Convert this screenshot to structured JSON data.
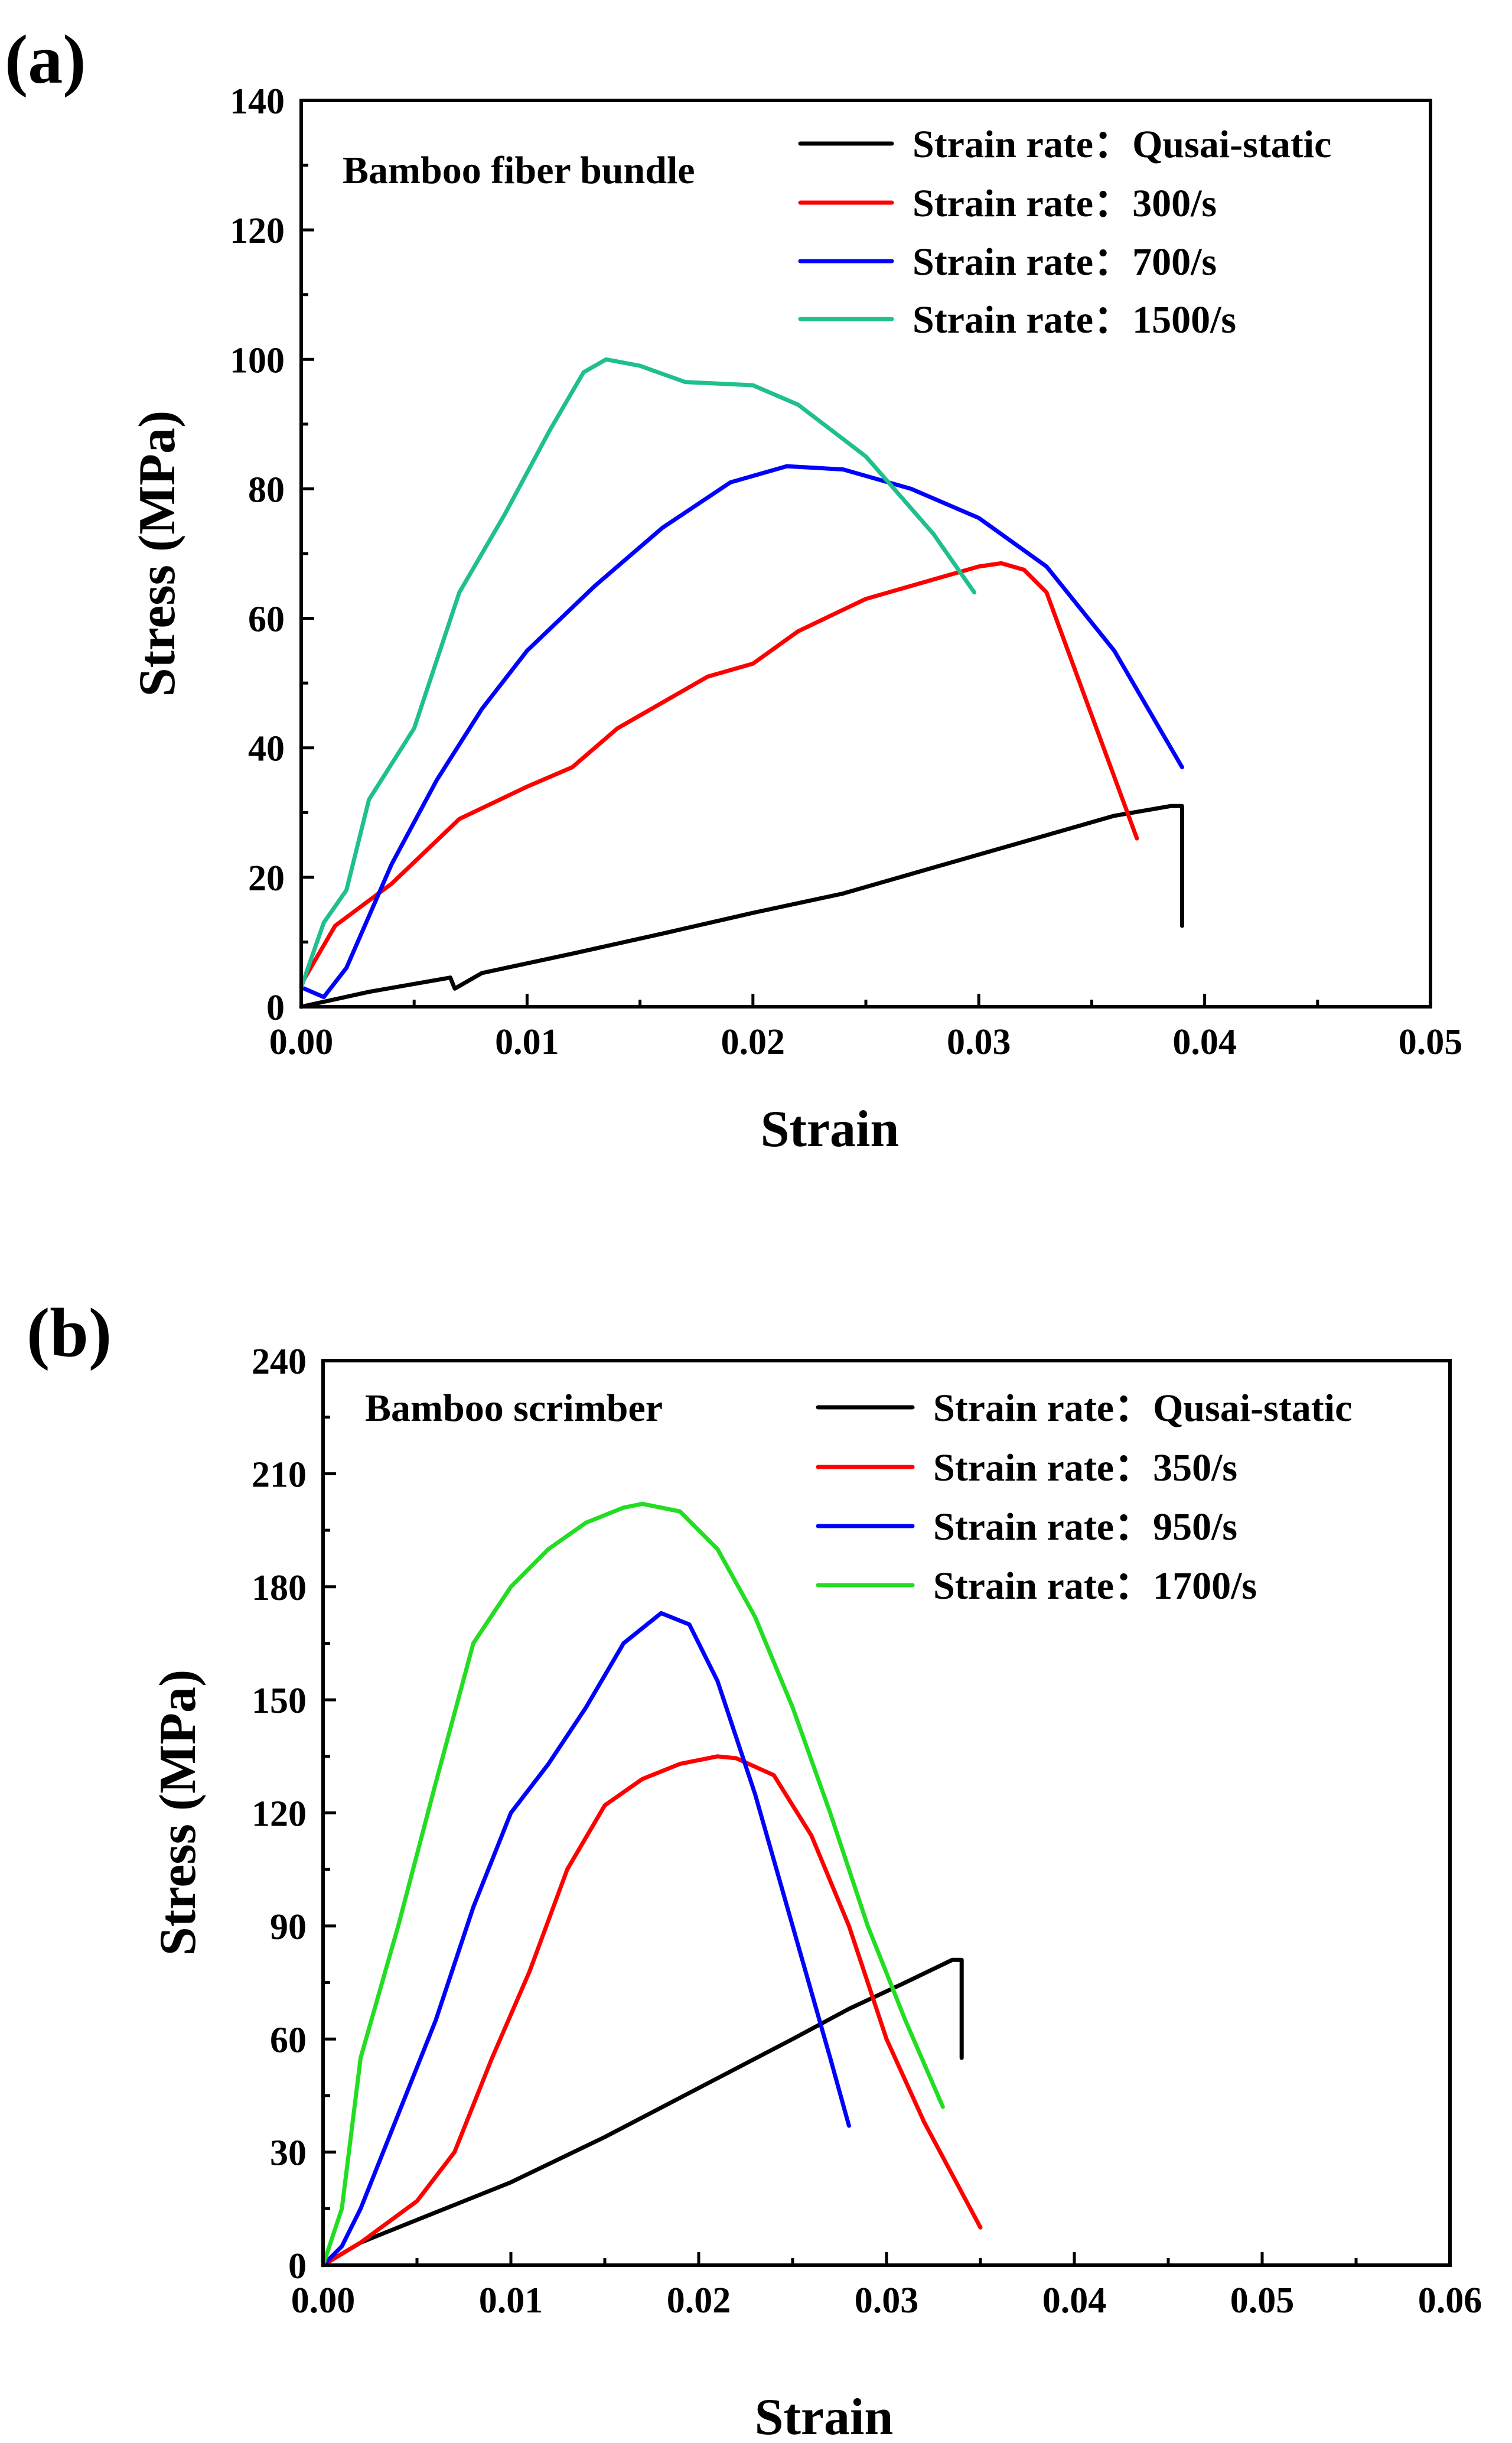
{
  "chart_data": [
    {
      "type": "line",
      "panel_label": "(a)",
      "title": "Bamboo fiber bundle",
      "xlabel": "Strain",
      "ylabel": "Stress (MPa)",
      "xlim": [
        0,
        0.05
      ],
      "ylim": [
        0,
        140
      ],
      "x_ticks": [
        "0.00",
        "0.01",
        "0.02",
        "0.03",
        "0.04",
        "0.05"
      ],
      "y_ticks": [
        "0",
        "20",
        "40",
        "60",
        "80",
        "100",
        "120",
        "140"
      ],
      "legend_position": "top-right",
      "series": [
        {
          "name": "Strain rate：Qusai-static",
          "color": "#000000",
          "points": [
            [
              0,
              0
            ],
            [
              0.003,
              2.3
            ],
            [
              0.0066,
              4.5
            ],
            [
              0.0068,
              2.8
            ],
            [
              0.008,
              5.2
            ],
            [
              0.012,
              8.2
            ],
            [
              0.016,
              11.3
            ],
            [
              0.02,
              14.5
            ],
            [
              0.024,
              17.5
            ],
            [
              0.028,
              21.5
            ],
            [
              0.032,
              25.5
            ],
            [
              0.036,
              29.5
            ],
            [
              0.0385,
              31
            ],
            [
              0.039,
              31
            ],
            [
              0.039,
              12.5
            ]
          ]
        },
        {
          "name": "Strain rate：300/s",
          "color": "#ff0000",
          "points": [
            [
              0,
              3.5
            ],
            [
              0.0015,
              12.5
            ],
            [
              0.004,
              19
            ],
            [
              0.007,
              29
            ],
            [
              0.01,
              34
            ],
            [
              0.012,
              37
            ],
            [
              0.014,
              43
            ],
            [
              0.018,
              51
            ],
            [
              0.02,
              53
            ],
            [
              0.022,
              58
            ],
            [
              0.025,
              63
            ],
            [
              0.028,
              66
            ],
            [
              0.03,
              68
            ],
            [
              0.031,
              68.5
            ],
            [
              0.032,
              67.5
            ],
            [
              0.033,
              64
            ],
            [
              0.035,
              45
            ],
            [
              0.037,
              26
            ]
          ]
        },
        {
          "name": "Strain rate：700/s",
          "color": "#0000ff",
          "points": [
            [
              0,
              3
            ],
            [
              0.001,
              1.5
            ],
            [
              0.002,
              6
            ],
            [
              0.004,
              22
            ],
            [
              0.006,
              35
            ],
            [
              0.008,
              46
            ],
            [
              0.01,
              55
            ],
            [
              0.013,
              65
            ],
            [
              0.016,
              74
            ],
            [
              0.019,
              81
            ],
            [
              0.0215,
              83.5
            ],
            [
              0.024,
              83
            ],
            [
              0.027,
              80
            ],
            [
              0.03,
              75.5
            ],
            [
              0.033,
              68
            ],
            [
              0.036,
              55
            ],
            [
              0.039,
              37
            ]
          ]
        },
        {
          "name": "Strain rate：1500/s",
          "color": "#1fbf8f",
          "points": [
            [
              0,
              3
            ],
            [
              0.001,
              13
            ],
            [
              0.002,
              18
            ],
            [
              0.003,
              32
            ],
            [
              0.005,
              43
            ],
            [
              0.007,
              64
            ],
            [
              0.009,
              76
            ],
            [
              0.011,
              89
            ],
            [
              0.0125,
              98
            ],
            [
              0.0135,
              100
            ],
            [
              0.015,
              99
            ],
            [
              0.017,
              96.5
            ],
            [
              0.02,
              96
            ],
            [
              0.022,
              93
            ],
            [
              0.025,
              85
            ],
            [
              0.0265,
              79
            ],
            [
              0.028,
              73
            ],
            [
              0.0298,
              64
            ]
          ]
        }
      ]
    },
    {
      "type": "line",
      "panel_label": "(b)",
      "title": "Bamboo scrimber",
      "xlabel": "Strain",
      "ylabel": "Stress (MPa)",
      "xlim": [
        0,
        0.06
      ],
      "ylim": [
        0,
        240
      ],
      "x_ticks": [
        "0.00",
        "0.01",
        "0.02",
        "0.03",
        "0.04",
        "0.05",
        "0.06"
      ],
      "y_ticks": [
        "0",
        "30",
        "60",
        "90",
        "120",
        "150",
        "180",
        "210",
        "240"
      ],
      "legend_position": "top-right",
      "series": [
        {
          "name": "Strain rate：Qusai-static",
          "color": "#000000",
          "points": [
            [
              0,
              0
            ],
            [
              0.002,
              6
            ],
            [
              0.005,
              12
            ],
            [
              0.01,
              22
            ],
            [
              0.015,
              34
            ],
            [
              0.02,
              47
            ],
            [
              0.025,
              60
            ],
            [
              0.028,
              68
            ],
            [
              0.031,
              75
            ],
            [
              0.0335,
              81
            ],
            [
              0.034,
              81
            ],
            [
              0.034,
              55
            ]
          ]
        },
        {
          "name": "Strain rate：350/s",
          "color": "#ff0000",
          "points": [
            [
              0,
              0
            ],
            [
              0.002,
              6
            ],
            [
              0.005,
              17
            ],
            [
              0.007,
              30
            ],
            [
              0.009,
              55
            ],
            [
              0.011,
              78
            ],
            [
              0.013,
              105
            ],
            [
              0.015,
              122
            ],
            [
              0.017,
              129
            ],
            [
              0.019,
              133
            ],
            [
              0.021,
              135
            ],
            [
              0.022,
              134.5
            ],
            [
              0.024,
              130
            ],
            [
              0.026,
              114
            ],
            [
              0.028,
              90
            ],
            [
              0.03,
              60
            ],
            [
              0.032,
              38
            ],
            [
              0.035,
              10
            ]
          ]
        },
        {
          "name": "Strain rate：950/s",
          "color": "#0000ff",
          "points": [
            [
              0,
              0
            ],
            [
              0.001,
              5
            ],
            [
              0.002,
              15
            ],
            [
              0.004,
              40
            ],
            [
              0.006,
              65
            ],
            [
              0.008,
              95
            ],
            [
              0.01,
              120
            ],
            [
              0.012,
              133
            ],
            [
              0.014,
              148
            ],
            [
              0.016,
              165
            ],
            [
              0.018,
              173
            ],
            [
              0.0195,
              170
            ],
            [
              0.021,
              155
            ],
            [
              0.023,
              125
            ],
            [
              0.025,
              90
            ],
            [
              0.027,
              55
            ],
            [
              0.028,
              37
            ]
          ]
        },
        {
          "name": "Strain rate：1700/s",
          "color": "#22dd22",
          "points": [
            [
              0,
              0
            ],
            [
              0.001,
              15
            ],
            [
              0.002,
              55
            ],
            [
              0.004,
              90
            ],
            [
              0.006,
              128
            ],
            [
              0.008,
              165
            ],
            [
              0.01,
              180
            ],
            [
              0.012,
              190
            ],
            [
              0.014,
              197
            ],
            [
              0.016,
              201
            ],
            [
              0.017,
              202
            ],
            [
              0.019,
              200
            ],
            [
              0.021,
              190
            ],
            [
              0.023,
              172
            ],
            [
              0.025,
              148
            ],
            [
              0.027,
              120
            ],
            [
              0.029,
              90
            ],
            [
              0.031,
              65
            ],
            [
              0.033,
              42
            ]
          ]
        }
      ]
    }
  ]
}
